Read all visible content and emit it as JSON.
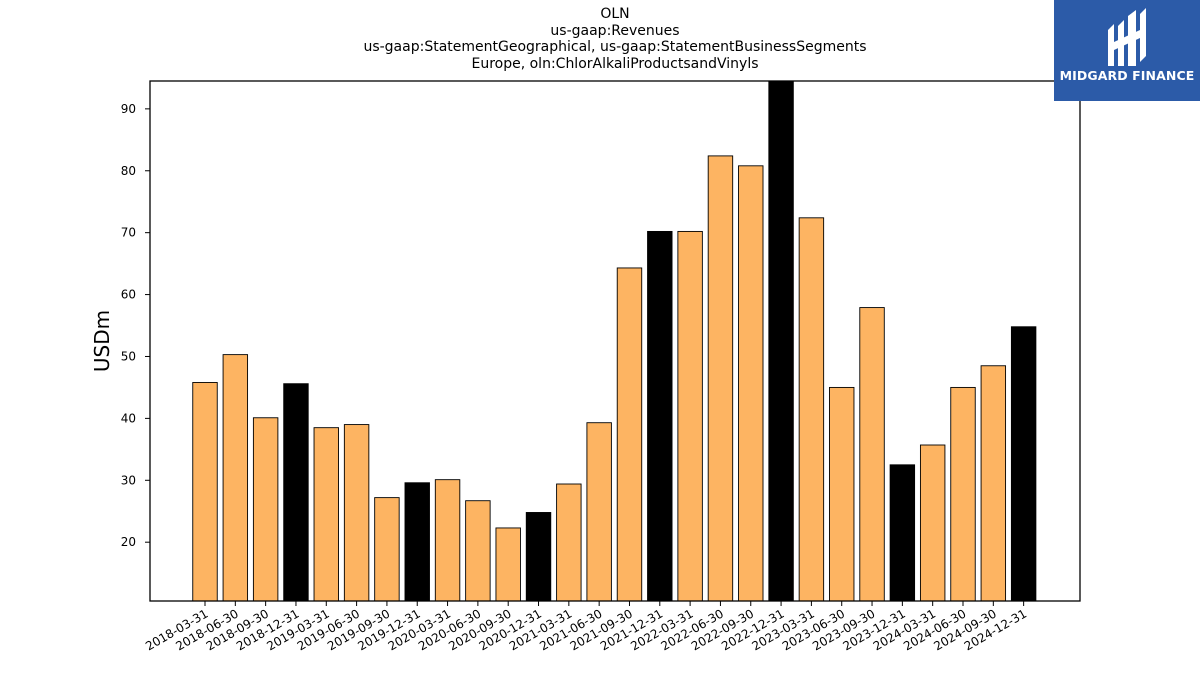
{
  "header": {
    "title_lines": [
      "OLN",
      "us-gaap:Revenues",
      "us-gaap:StatementGeographical, us-gaap:StatementBusinessSegments",
      "Europe, oln:ChlorAlkaliProductsandVinyls"
    ]
  },
  "logo": {
    "text": "MIDGARD FINANCE",
    "icon": "midgard-logo-icon",
    "background": "#2c5ba8"
  },
  "colors": {
    "bar_quarter": "#fdb462",
    "bar_year_end": "#000000",
    "bar_edge": "#000000"
  },
  "chart_data": {
    "type": "bar",
    "title": "OLN\nus-gaap:Revenues\nus-gaap:StatementGeographical, us-gaap:StatementBusinessSegments\nEurope, oln:ChlorAlkaliProductsandVinyls",
    "xlabel": "",
    "ylabel": "USDm",
    "ylim": [
      10.5,
      94.5
    ],
    "yticks": [
      20,
      30,
      40,
      50,
      60,
      70,
      80,
      90
    ],
    "categories": [
      "2018-03-31",
      "2018-06-30",
      "2018-09-30",
      "2018-12-31",
      "2019-03-31",
      "2019-06-30",
      "2019-09-30",
      "2019-12-31",
      "2020-03-31",
      "2020-06-30",
      "2020-09-30",
      "2020-12-31",
      "2021-03-31",
      "2021-06-30",
      "2021-09-30",
      "2021-12-31",
      "2022-03-31",
      "2022-06-30",
      "2022-09-30",
      "2022-12-31",
      "2023-03-31",
      "2023-06-30",
      "2023-09-30",
      "2023-12-31",
      "2024-03-31",
      "2024-06-30",
      "2024-09-30",
      "2024-12-31"
    ],
    "values": [
      45.8,
      50.3,
      40.1,
      45.6,
      38.5,
      39.0,
      27.2,
      29.6,
      30.1,
      26.7,
      22.3,
      24.8,
      29.4,
      39.3,
      64.3,
      70.2,
      70.2,
      82.4,
      80.8,
      94.5,
      72.4,
      45.0,
      57.9,
      32.5,
      35.7,
      45.0,
      48.5,
      54.8
    ],
    "year_end": [
      false,
      false,
      false,
      true,
      false,
      false,
      false,
      true,
      false,
      false,
      false,
      true,
      false,
      false,
      false,
      true,
      false,
      false,
      false,
      true,
      false,
      false,
      false,
      true,
      false,
      false,
      false,
      true
    ],
    "grid": false,
    "legend": "none"
  }
}
